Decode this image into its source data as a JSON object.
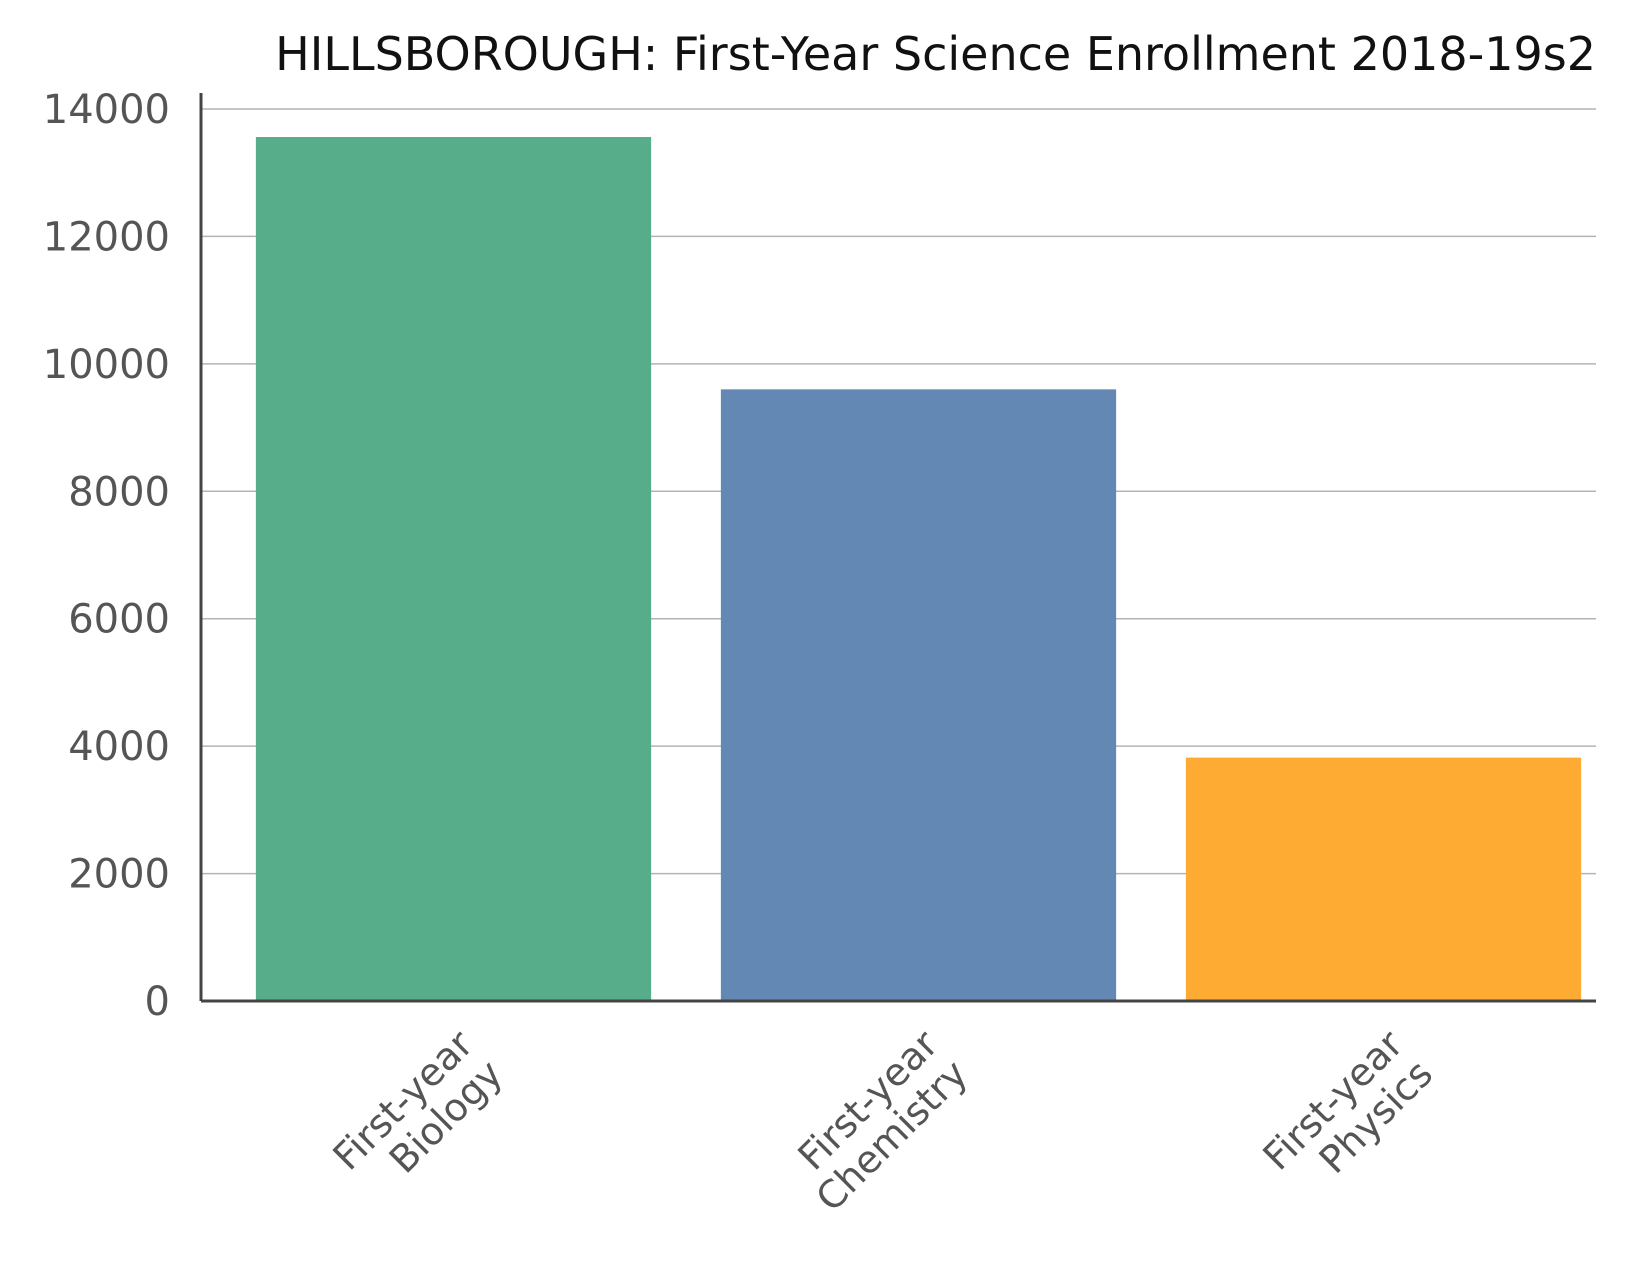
{
  "chart_data": {
    "type": "bar",
    "title": "HILLSBOROUGH: First-Year Science Enrollment 2018-19s2",
    "xlabel": "",
    "ylabel": "",
    "categories": [
      [
        "First-year",
        "Biology"
      ],
      [
        "First-year",
        "Chemistry"
      ],
      [
        "First-year",
        "Physics"
      ]
    ],
    "values": [
      13560,
      9600,
      3820
    ],
    "colors": [
      "#57ac89",
      "#6388b3",
      "#fdab33"
    ],
    "ylim": [
      0,
      14000
    ],
    "yticks": [
      0,
      2000,
      4000,
      6000,
      8000,
      10000,
      12000,
      14000
    ],
    "grid": true,
    "legend": "none"
  }
}
